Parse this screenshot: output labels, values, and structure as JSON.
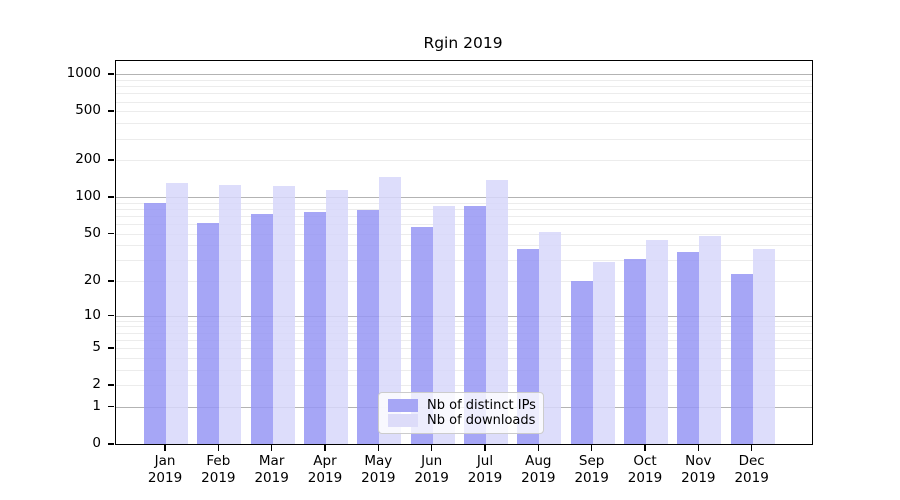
{
  "title": "Rgin 2019",
  "legend": {
    "items": [
      {
        "label": "Nb of distinct IPs",
        "color": "#a6a6f5"
      },
      {
        "label": "Nb of downloads",
        "color": "#dddcf9"
      }
    ]
  },
  "colors": {
    "bar_distinct_ips": "rgba(150,150,245,0.85)",
    "bar_downloads": "rgba(215,215,250,0.85)",
    "grid_major": "#b3b3b3",
    "grid_minor": "#ececec",
    "axis": "#000000"
  },
  "chart_data": {
    "type": "bar",
    "title": "Rgin 2019",
    "categories": [
      "Jan 2019",
      "Feb 2019",
      "Mar 2019",
      "Apr 2019",
      "May 2019",
      "Jun 2019",
      "Jul 2019",
      "Aug 2019",
      "Sep 2019",
      "Oct 2019",
      "Nov 2019",
      "Dec 2019"
    ],
    "series": [
      {
        "name": "Nb of distinct IPs",
        "values": [
          90,
          61,
          72,
          75,
          78,
          57,
          85,
          37,
          20,
          31,
          35,
          23
        ]
      },
      {
        "name": "Nb of downloads",
        "values": [
          130,
          125,
          124,
          115,
          147,
          84,
          138,
          52,
          29,
          44,
          48,
          37
        ]
      }
    ],
    "xlabel": "",
    "ylabel": "",
    "yscale": "log1p",
    "yticks": [
      0,
      1,
      2,
      5,
      10,
      20,
      50,
      100,
      200,
      500,
      1000
    ],
    "ylim": [
      0,
      1285
    ],
    "grid": "on",
    "grid_major_at": [
      1,
      10,
      100,
      1000
    ],
    "legend_position": "lower-center"
  }
}
